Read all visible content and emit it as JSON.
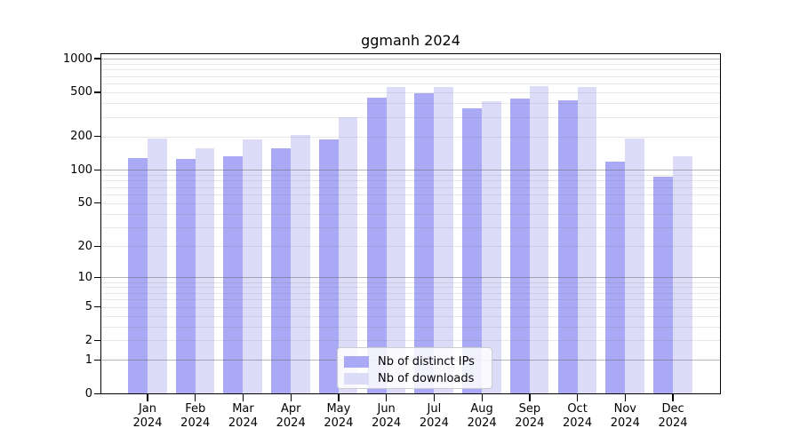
{
  "title": "ggmanh 2024",
  "chart_data": {
    "type": "bar",
    "title": "ggmanh 2024",
    "categories": [
      "Jan 2024",
      "Feb 2024",
      "Mar 2024",
      "Apr 2024",
      "May 2024",
      "Jun 2024",
      "Jul 2024",
      "Aug 2024",
      "Sep 2024",
      "Oct 2024",
      "Nov 2024",
      "Dec 2024"
    ],
    "series": [
      {
        "name": "Nb of distinct IPs",
        "color": "#a9a9f5",
        "values": [
          128,
          125,
          132,
          157,
          189,
          450,
          488,
          358,
          437,
          419,
          119,
          87
        ]
      },
      {
        "name": "Nb of downloads",
        "color": "#dcdcf9",
        "values": [
          193,
          156,
          188,
          207,
          299,
          556,
          561,
          417,
          566,
          559,
          193,
          132
        ]
      }
    ],
    "xlabel": "",
    "ylabel": "",
    "yscale": "log10(value+1)",
    "yticks": [
      0,
      1,
      2,
      5,
      10,
      20,
      50,
      100,
      200,
      500,
      1000
    ],
    "ylim": [
      0,
      1128
    ],
    "grid": "horizontal major+minor, drawn over bars",
    "legend_position": "inside bottom-center"
  }
}
